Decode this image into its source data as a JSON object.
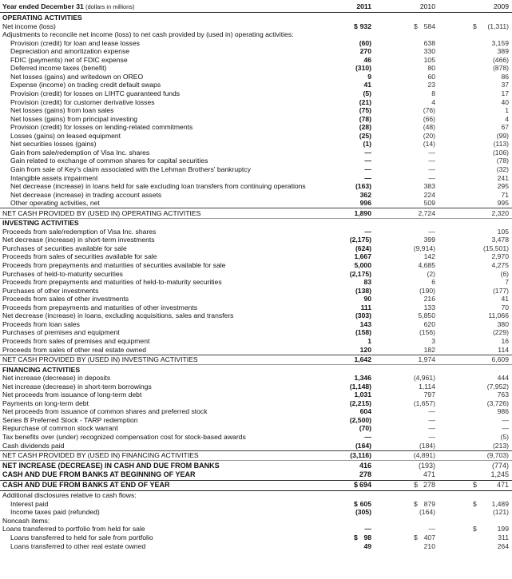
{
  "header": {
    "label": "Year ended December 31",
    "note": "(dollars in millions)",
    "years": [
      "2011",
      "2010",
      "2009"
    ]
  },
  "rows": [
    {
      "t": "sec",
      "label": "OPERATING ACTIVITIES"
    },
    {
      "t": "row",
      "label": "Net income (loss)",
      "v": [
        "932",
        "584",
        "(1,311)"
      ],
      "d": [
        "$",
        "$",
        "$"
      ]
    },
    {
      "t": "row",
      "label": "Adjustments to reconcile net income (loss) to net cash provided by (used in) operating activities:",
      "v": [
        "",
        "",
        ""
      ]
    },
    {
      "t": "row",
      "ind": true,
      "label": "Provision (credit) for loan and lease losses",
      "v": [
        "(60)",
        "638",
        "3,159"
      ]
    },
    {
      "t": "row",
      "ind": true,
      "label": "Depreciation and amortization expense",
      "v": [
        "270",
        "330",
        "389"
      ]
    },
    {
      "t": "row",
      "ind": true,
      "label": "FDIC (payments) net of FDIC expense",
      "v": [
        "46",
        "105",
        "(466)"
      ]
    },
    {
      "t": "row",
      "ind": true,
      "label": "Deferred income taxes (benefit)",
      "v": [
        "(310)",
        "80",
        "(878)"
      ]
    },
    {
      "t": "row",
      "ind": true,
      "label": "Net losses (gains) and writedown on OREO",
      "v": [
        "9",
        "60",
        "86"
      ]
    },
    {
      "t": "row",
      "ind": true,
      "label": "Expense (income) on trading credit default swaps",
      "v": [
        "41",
        "23",
        "37"
      ]
    },
    {
      "t": "row",
      "ind": true,
      "label": "Provision (credit) for losses on LIHTC guaranteed funds",
      "v": [
        "(5)",
        "8",
        "17"
      ]
    },
    {
      "t": "row",
      "ind": true,
      "label": "Provision (credit) for customer derivative losses",
      "v": [
        "(21)",
        "4",
        "40"
      ]
    },
    {
      "t": "row",
      "ind": true,
      "label": "Net losses (gains) from loan sales",
      "v": [
        "(75)",
        "(76)",
        "1"
      ]
    },
    {
      "t": "row",
      "ind": true,
      "label": "Net losses (gains) from principal investing",
      "v": [
        "(78)",
        "(66)",
        "4"
      ]
    },
    {
      "t": "row",
      "ind": true,
      "label": "Provision (credit) for losses on lending-related commitments",
      "v": [
        "(28)",
        "(48)",
        "67"
      ]
    },
    {
      "t": "row",
      "ind": true,
      "label": "Losses (gains) on leased equipment",
      "v": [
        "(25)",
        "(20)",
        "(99)"
      ]
    },
    {
      "t": "row",
      "ind": true,
      "label": "Net securities losses (gains)",
      "v": [
        "(1)",
        "(14)",
        "(113)"
      ]
    },
    {
      "t": "row",
      "ind": true,
      "label": "Gain from sale/redemption of Visa Inc. shares",
      "v": [
        "—",
        "—",
        "(106)"
      ]
    },
    {
      "t": "row",
      "ind": true,
      "label": "Gain related to exchange of common shares for capital securities",
      "v": [
        "—",
        "—",
        "(78)"
      ]
    },
    {
      "t": "row",
      "ind": true,
      "label": "Gain from sale of Key's claim associated with the Lehman Brothers' bankruptcy",
      "v": [
        "—",
        "—",
        "(32)"
      ]
    },
    {
      "t": "row",
      "ind": true,
      "label": "Intangible assets impairment",
      "v": [
        "—",
        "—",
        "241"
      ]
    },
    {
      "t": "row",
      "ind": true,
      "label": "Net decrease (increase) in loans held for sale excluding loan transfers from continuing operations",
      "v": [
        "(163)",
        "383",
        "295"
      ]
    },
    {
      "t": "row",
      "ind": true,
      "label": "Net decrease (increase) in trading account assets",
      "v": [
        "362",
        "224",
        "71"
      ]
    },
    {
      "t": "row",
      "ind": true,
      "label": "Other operating activities, net",
      "v": [
        "996",
        "509",
        "995"
      ]
    },
    {
      "t": "rule"
    },
    {
      "t": "total",
      "label": "NET CASH PROVIDED BY (USED IN) OPERATING ACTIVITIES",
      "v": [
        "1,890",
        "2,724",
        "2,320"
      ]
    },
    {
      "t": "rule",
      "k": "light"
    },
    {
      "t": "sec",
      "label": "INVESTING ACTIVITIES"
    },
    {
      "t": "row",
      "label": "Proceeds from sale/redemption of Visa Inc. shares",
      "v": [
        "—",
        "—",
        "105"
      ]
    },
    {
      "t": "row",
      "label": "Net decrease (increase) in short-term investments",
      "v": [
        "(2,175)",
        "399",
        "3,478"
      ]
    },
    {
      "t": "row",
      "label": "Purchases of securities available for sale",
      "v": [
        "(624)",
        "(9,914)",
        "(15,501)"
      ]
    },
    {
      "t": "row",
      "label": "Proceeds from sales of securities available for sale",
      "v": [
        "1,667",
        "142",
        "2,970"
      ]
    },
    {
      "t": "row",
      "label": "Proceeds from prepayments and maturities of securities available for sale",
      "v": [
        "5,000",
        "4,685",
        "4,275"
      ]
    },
    {
      "t": "row",
      "label": "Purchases of held-to-maturity securities",
      "v": [
        "(2,175)",
        "(2)",
        "(6)"
      ]
    },
    {
      "t": "row",
      "label": "Proceeds from prepayments and maturities of held-to-maturity securities",
      "v": [
        "83",
        "6",
        "7"
      ]
    },
    {
      "t": "row",
      "label": "Purchases of other investments",
      "v": [
        "(138)",
        "(190)",
        "(177)"
      ]
    },
    {
      "t": "row",
      "label": "Proceeds from sales of other investments",
      "v": [
        "90",
        "216",
        "41"
      ]
    },
    {
      "t": "row",
      "label": "Proceeds from prepayments and maturities of other investments",
      "v": [
        "111",
        "133",
        "70"
      ]
    },
    {
      "t": "row",
      "label": "Net decrease (increase) in loans, excluding acquisitions, sales and transfers",
      "v": [
        "(303)",
        "5,850",
        "11,066"
      ]
    },
    {
      "t": "row",
      "label": "Proceeds from loan sales",
      "v": [
        "143",
        "620",
        "380"
      ]
    },
    {
      "t": "row",
      "label": "Purchases of premises and equipment",
      "v": [
        "(158)",
        "(156)",
        "(229)"
      ]
    },
    {
      "t": "row",
      "label": "Proceeds from sales of premises and equipment",
      "v": [
        "1",
        "3",
        "16"
      ]
    },
    {
      "t": "row",
      "label": "Proceeds from sales of other real estate owned",
      "v": [
        "120",
        "182",
        "114"
      ]
    },
    {
      "t": "rule"
    },
    {
      "t": "total",
      "label": "NET CASH PROVIDED BY (USED IN) INVESTING ACTIVITIES",
      "v": [
        "1,642",
        "1,974",
        "6,609"
      ]
    },
    {
      "t": "rule",
      "k": "light"
    },
    {
      "t": "sec",
      "label": "FINANCING ACTIVITIES"
    },
    {
      "t": "row",
      "label": "Net increase (decrease) in deposits",
      "v": [
        "1,346",
        "(4,961)",
        "444"
      ]
    },
    {
      "t": "row",
      "label": "Net increase (decrease) in short-term borrowings",
      "v": [
        "(1,148)",
        "1,114",
        "(7,952)"
      ]
    },
    {
      "t": "row",
      "label": "Net proceeds from issuance of long-term debt",
      "v": [
        "1,031",
        "797",
        "763"
      ]
    },
    {
      "t": "row",
      "label": "Payments on long-term debt",
      "v": [
        "(2,215)",
        "(1,657)",
        "(3,726)"
      ]
    },
    {
      "t": "row",
      "label": "Net proceeds from issuance of common shares and preferred stock",
      "v": [
        "604",
        "—",
        "986"
      ]
    },
    {
      "t": "row",
      "label": "Series B Preferred Stock - TARP redemption",
      "v": [
        "(2,500)",
        "—",
        "—"
      ]
    },
    {
      "t": "row",
      "label": "Repurchase of common stock warrant",
      "v": [
        "(70)",
        "—",
        "—"
      ]
    },
    {
      "t": "row",
      "label": "Tax benefits over (under) recognized compensation cost for stock-based awards",
      "v": [
        "—",
        "—",
        "(5)"
      ]
    },
    {
      "t": "row",
      "label": "Cash dividends paid",
      "v": [
        "(164)",
        "(184)",
        "(213)"
      ]
    },
    {
      "t": "rule"
    },
    {
      "t": "total",
      "label": "NET CASH PROVIDED BY (USED IN) FINANCING ACTIVITIES",
      "v": [
        "(3,116)",
        "(4,891)",
        "(9,703)"
      ]
    },
    {
      "t": "rule",
      "k": "light"
    },
    {
      "t": "big",
      "label": "NET INCREASE (DECREASE) IN CASH AND DUE FROM BANKS",
      "v": [
        "416",
        "(193)",
        "(774)"
      ]
    },
    {
      "t": "big",
      "label": "CASH AND DUE FROM BANKS AT BEGINNING OF YEAR",
      "v": [
        "278",
        "471",
        "1,245"
      ]
    },
    {
      "t": "rule",
      "k": "thick"
    },
    {
      "t": "big",
      "label": "CASH AND DUE FROM BANKS AT END OF YEAR",
      "v": [
        "694",
        "278",
        "471"
      ],
      "d": [
        "$",
        "$",
        "$"
      ]
    },
    {
      "t": "rule",
      "k": "thick"
    },
    {
      "t": "row",
      "label": "Additional disclosures relative to cash flows:",
      "v": [
        "",
        "",
        ""
      ]
    },
    {
      "t": "row",
      "ind": true,
      "label": "Interest paid",
      "v": [
        "605",
        "879",
        "1,489"
      ],
      "d": [
        "$",
        "$",
        "$"
      ]
    },
    {
      "t": "row",
      "ind": true,
      "label": "Income taxes paid (refunded)",
      "v": [
        "(305)",
        "(164)",
        "(121)"
      ]
    },
    {
      "t": "row",
      "label": "Noncash items:",
      "v": [
        "",
        "",
        ""
      ]
    },
    {
      "t": "row",
      "label": "Loans transferred to portfolio from held for sale",
      "v": [
        "—",
        "—",
        "199"
      ],
      "d": [
        "",
        "",
        "$"
      ]
    },
    {
      "t": "row",
      "ind": true,
      "label": "Loans transferred to held for sale from portfolio",
      "v": [
        "98",
        "407",
        "311"
      ],
      "d": [
        "$",
        "$",
        ""
      ]
    },
    {
      "t": "row",
      "ind": true,
      "label": "Loans transferred to other real estate owned",
      "v": [
        "49",
        "210",
        "264"
      ]
    }
  ]
}
